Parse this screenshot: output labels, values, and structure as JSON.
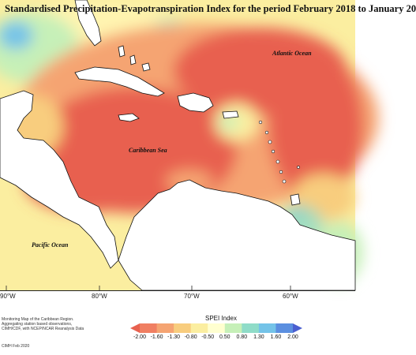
{
  "title": "Standardised Precipitation-Evapotranspiration Index for the period February 2018 to January 20",
  "ocean_labels": {
    "atlantic": "Atlantic Ocean",
    "caribbean": "Caribbean Sea",
    "pacific": "Pacific Ocean"
  },
  "lon_ticks": [
    "90°W",
    "80°W",
    "70°W",
    "60°W"
  ],
  "legend": {
    "title": "SPEI Index",
    "values": [
      "-2.00",
      "-1.60",
      "-1.30",
      "-0.80",
      "-0.50",
      "0.50",
      "0.80",
      "1.30",
      "1.60",
      "2.00"
    ],
    "colors": [
      "#e8614f",
      "#f07f62",
      "#f5a472",
      "#f8cd7e",
      "#fbeea0",
      "#ffffd0",
      "#c6f0b8",
      "#8fdcc8",
      "#74c3e8",
      "#5b8fe0",
      "#4a5fd0"
    ]
  },
  "credits": [
    "Monitoring Map of the Caribbean Region.",
    "Aggregating station based observations,",
    "CIMH/CDF, with NCEP/NCAR Reanalysis Data"
  ],
  "date_text": "CIMH Feb 2020"
}
